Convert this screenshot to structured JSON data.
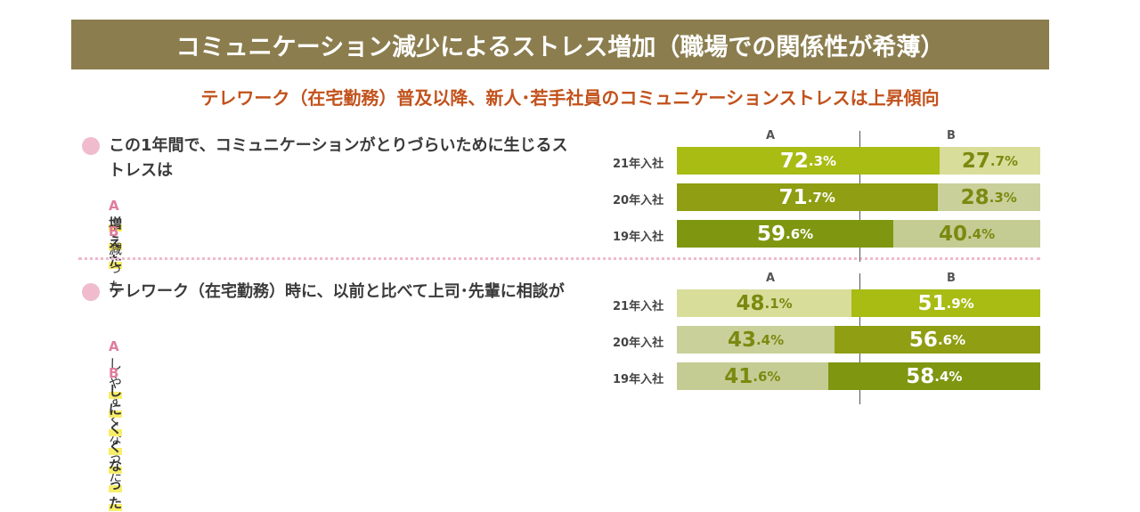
{
  "title": "コミュニケーション減少によるストレス増加（職場での関係性が希薄）",
  "subtitle": "テレワーク（在宅勤務）普及以降、新人･若手社員のコミュニケーションストレスは上昇傾向",
  "chart_data": [
    {
      "type": "bar",
      "question": "この1年間で、コミュニケーションがとりづらいために生じるストレスは",
      "options": [
        {
          "letter": "A",
          "text": "増えた",
          "highlight": true
        },
        {
          "letter": "B",
          "text": "減った",
          "highlight": false
        }
      ],
      "column_labels": [
        "A",
        "B"
      ],
      "categories": [
        "21年入社",
        "20年入社",
        "19年入社"
      ],
      "series": [
        {
          "name": "A",
          "values": [
            72.3,
            71.7,
            59.6
          ],
          "colors": [
            "#a8bc13",
            "#8f9e12",
            "#7f9610"
          ]
        },
        {
          "name": "B",
          "values": [
            27.7,
            28.3,
            40.4
          ],
          "colors": [
            "#d9dd9a",
            "#c9d09a",
            "#c4cc93"
          ]
        }
      ],
      "unit": "%"
    },
    {
      "type": "bar",
      "question": "テレワーク（在宅勤務）時に、以前と比べて上司･先輩に相談が",
      "options": [
        {
          "letter": "A",
          "text": "しやすくなった",
          "highlight": false
        },
        {
          "letter": "B",
          "text": "しにくくなった",
          "highlight": true
        }
      ],
      "column_labels": [
        "A",
        "B"
      ],
      "categories": [
        "21年入社",
        "20年入社",
        "19年入社"
      ],
      "series": [
        {
          "name": "A",
          "values": [
            48.1,
            43.4,
            41.6
          ],
          "colors": [
            "#d9dd9a",
            "#c9d09a",
            "#c4cc93"
          ]
        },
        {
          "name": "B",
          "values": [
            51.9,
            56.6,
            58.4
          ],
          "colors": [
            "#a8bc13",
            "#8f9e12",
            "#7f9610"
          ]
        }
      ],
      "unit": "%"
    }
  ]
}
